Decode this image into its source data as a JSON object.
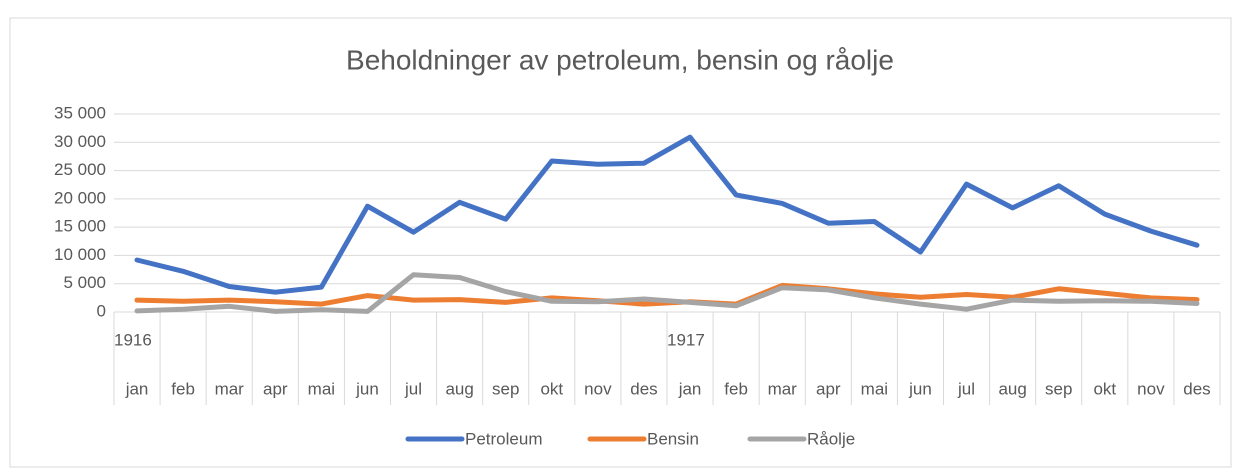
{
  "chart_data": {
    "type": "line",
    "title": "Beholdninger av petroleum, bensin og råolje",
    "categories": [
      "jan",
      "feb",
      "mar",
      "apr",
      "mai",
      "jun",
      "jul",
      "aug",
      "sep",
      "okt",
      "nov",
      "des",
      "jan",
      "feb",
      "mar",
      "apr",
      "mai",
      "jun",
      "jul",
      "aug",
      "sep",
      "okt",
      "nov",
      "des"
    ],
    "year_labels": [
      "1916",
      null,
      null,
      null,
      null,
      null,
      null,
      null,
      null,
      null,
      null,
      null,
      "1917",
      null,
      null,
      null,
      null,
      null,
      null,
      null,
      null,
      null,
      null,
      null
    ],
    "series": [
      {
        "name": "Petroleum",
        "color": "#4472c4",
        "values": [
          9200,
          7200,
          4500,
          3500,
          4400,
          18700,
          14100,
          19400,
          16400,
          26700,
          26100,
          26300,
          30900,
          20700,
          19200,
          15700,
          16000,
          10600,
          22600,
          18400,
          22300,
          17300,
          14300,
          11800
        ]
      },
      {
        "name": "Bensin",
        "color": "#ed7d31",
        "values": [
          2100,
          1900,
          2100,
          1800,
          1400,
          2900,
          2100,
          2200,
          1700,
          2500,
          2000,
          1400,
          1800,
          1400,
          4700,
          4100,
          3200,
          2600,
          3100,
          2600,
          4100,
          3300,
          2500,
          2200
        ]
      },
      {
        "name": "Råolje",
        "color": "#a5a5a5",
        "values": [
          200,
          500,
          1000,
          100,
          400,
          100,
          6600,
          6100,
          3600,
          1900,
          1800,
          2300,
          1700,
          1100,
          4300,
          3900,
          2500,
          1400,
          500,
          2100,
          1900,
          2000,
          1900,
          1500
        ]
      }
    ],
    "ylim": [
      0,
      35000
    ],
    "yticks": [
      0,
      {
        "value": 5000,
        "label": "5 000"
      },
      {
        "value": 10000,
        "label": "10 000"
      },
      {
        "value": 15000,
        "label": "15 000"
      },
      {
        "value": 20000,
        "label": "20 000"
      },
      {
        "value": 25000,
        "label": "25 000"
      },
      {
        "value": 30000,
        "label": "30 000"
      },
      {
        "value": 35000,
        "label": "35 000"
      }
    ],
    "grid": true,
    "legend": "bottom"
  }
}
